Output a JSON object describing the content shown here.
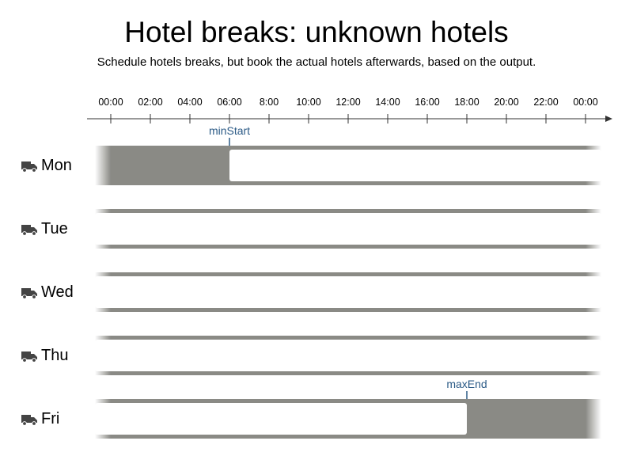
{
  "title": "Hotel breaks: unknown hotels",
  "subtitle": "Schedule hotels breaks, but book the actual hotels afterwards, based on the output.",
  "axis": {
    "ticks": [
      "00:00",
      "02:00",
      "04:00",
      "06:00",
      "8:00",
      "10:00",
      "12:00",
      "14:00",
      "16:00",
      "18:00",
      "20:00",
      "22:00",
      "00:00"
    ]
  },
  "colors": {
    "blocked": "#8a8a85",
    "available": "#ffffff",
    "marker": "#2b5a86",
    "axis": "#333333"
  },
  "days": [
    {
      "label": "Mon",
      "icon": "truck-icon",
      "available_start_hour": 6,
      "available_end_hour": 24
    },
    {
      "label": "Tue",
      "icon": "truck-icon",
      "available_start_hour": 0,
      "available_end_hour": 24
    },
    {
      "label": "Wed",
      "icon": "truck-icon",
      "available_start_hour": 0,
      "available_end_hour": 24
    },
    {
      "label": "Thu",
      "icon": "truck-icon",
      "available_start_hour": 0,
      "available_end_hour": 24
    },
    {
      "label": "Fri",
      "icon": "truck-icon",
      "available_start_hour": 0,
      "available_end_hour": 18
    }
  ],
  "markers": [
    {
      "label": "minStart",
      "day_index": 0,
      "hour": 6
    },
    {
      "label": "maxEnd",
      "day_index": 4,
      "hour": 18
    }
  ]
}
